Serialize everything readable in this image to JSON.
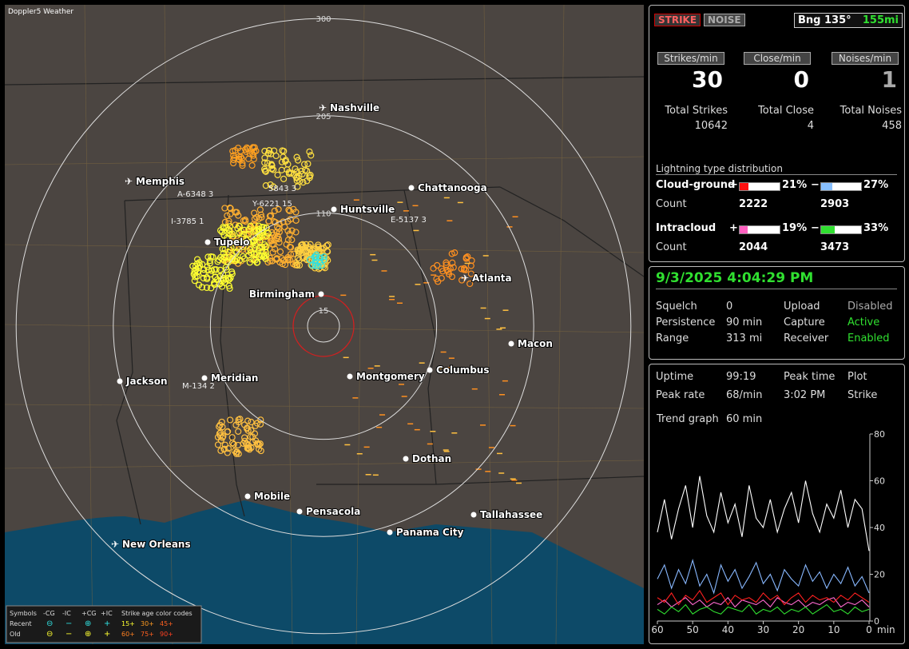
{
  "map": {
    "title": "Doppler5 Weather",
    "rings": [
      15,
      110,
      205,
      300
    ],
    "cities": [
      "Nashville",
      "Memphis",
      "Chattanooga",
      "Huntsville",
      "Tupelo",
      "Atlanta",
      "Birmingham",
      "Macon",
      "Jackson",
      "Meridian",
      "Montgomery",
      "Columbus",
      "Dothan",
      "Mobile",
      "Pensacola",
      "Tallahassee",
      "Panama City",
      "New Orleans"
    ],
    "storm_labels": [
      "A-6348 3",
      "5843 3",
      "Y-6221 15",
      "I-3785 1",
      "E-5137 3",
      "M-134 2"
    ],
    "legend": {
      "row_header": "Symbols",
      "symbols": [
        "-CG",
        "-IC",
        "+CG",
        "+IC"
      ],
      "age_header": "Strike age color codes",
      "recent": "Recent",
      "old": "Old",
      "recent_ages": [
        "15+",
        "30+",
        "45+"
      ],
      "old_ages": [
        "60+",
        "75+",
        "90+"
      ]
    }
  },
  "status": {
    "strike_button": "STRIKE",
    "noise_button": "NOISE",
    "bearing": "Bng 135°",
    "distance": "155mi",
    "rate_headers": [
      "Strikes/min",
      "Close/min",
      "Noises/min"
    ],
    "rates": [
      30,
      0,
      1
    ],
    "total_labels": [
      "Total Strikes",
      "Total Close",
      "Total Noises"
    ],
    "totals": [
      10642,
      4,
      458
    ],
    "distribution_title": "Lightning type distribution",
    "count_label": "Count",
    "distribution": [
      {
        "name": "Cloud-ground",
        "plus_sign": "+",
        "minus_sign": "−",
        "plus": {
          "value": 21,
          "label": "21%"
        },
        "minus": {
          "value": 27,
          "label": "27%"
        },
        "plus_count": 2222,
        "minus_count": 2903
      },
      {
        "name": "Intracloud",
        "plus_sign": "+",
        "minus_sign": "−",
        "plus": {
          "value": 19,
          "label": "19%"
        },
        "minus": {
          "value": 33,
          "label": "33%"
        },
        "plus_count": 2044,
        "minus_count": 3473
      }
    ]
  },
  "settings": {
    "datetime": "9/3/2025 4:04:29 PM",
    "rows": [
      [
        "Squelch",
        "0",
        "Upload",
        "Disabled"
      ],
      [
        "Persistence",
        "90 min",
        "Capture",
        "Active"
      ],
      [
        "Range",
        "313 mi",
        "Receiver",
        "Enabled"
      ]
    ]
  },
  "uptime": {
    "rows": [
      [
        "Uptime",
        "99:19",
        "Peak time",
        "Plot"
      ],
      [
        "Peak rate",
        "68/min",
        "3:02 PM",
        "Strike"
      ]
    ],
    "trend_label": "Trend graph",
    "trend_value": "60 min"
  },
  "chart_data": {
    "type": "line",
    "xlabel": "min",
    "xlim": [
      60,
      0
    ],
    "xticks": [
      60,
      50,
      40,
      30,
      20,
      10,
      0
    ],
    "ylim": [
      0,
      80
    ],
    "yticks": [
      0,
      20,
      40,
      60,
      80
    ],
    "x": [
      60,
      58,
      56,
      54,
      52,
      50,
      48,
      46,
      44,
      42,
      40,
      38,
      36,
      34,
      32,
      30,
      28,
      26,
      24,
      22,
      20,
      18,
      16,
      14,
      12,
      10,
      8,
      6,
      4,
      2,
      0
    ],
    "series": [
      {
        "color": "#ffffff",
        "values": [
          38,
          52,
          35,
          48,
          58,
          40,
          62,
          45,
          38,
          55,
          42,
          50,
          36,
          58,
          44,
          40,
          52,
          38,
          48,
          55,
          42,
          60,
          46,
          38,
          50,
          44,
          56,
          40,
          52,
          48,
          30
        ]
      },
      {
        "color": "#88b8ff",
        "values": [
          18,
          24,
          14,
          22,
          16,
          26,
          15,
          20,
          12,
          24,
          17,
          22,
          14,
          19,
          25,
          16,
          20,
          13,
          22,
          18,
          15,
          24,
          17,
          21,
          14,
          20,
          16,
          23,
          15,
          19,
          12
        ]
      },
      {
        "color": "#ff6ad0",
        "values": [
          7,
          9,
          6,
          8,
          10,
          7,
          9,
          6,
          8,
          7,
          10,
          6,
          9,
          8,
          7,
          9,
          6,
          10,
          8,
          7,
          9,
          6,
          8,
          7,
          9,
          10,
          6,
          8,
          7,
          9,
          6
        ]
      },
      {
        "color": "#ff2020",
        "values": [
          10,
          8,
          12,
          7,
          11,
          9,
          13,
          8,
          10,
          12,
          7,
          11,
          9,
          10,
          8,
          12,
          9,
          11,
          7,
          10,
          12,
          8,
          11,
          9,
          10,
          8,
          11,
          9,
          12,
          10,
          8
        ]
      },
      {
        "color": "#30e030",
        "values": [
          5,
          3,
          6,
          4,
          7,
          3,
          5,
          6,
          4,
          3,
          6,
          5,
          4,
          7,
          3,
          5,
          4,
          6,
          3,
          5,
          4,
          6,
          3,
          5,
          7,
          4,
          5,
          3,
          6,
          4,
          5
        ]
      }
    ]
  }
}
